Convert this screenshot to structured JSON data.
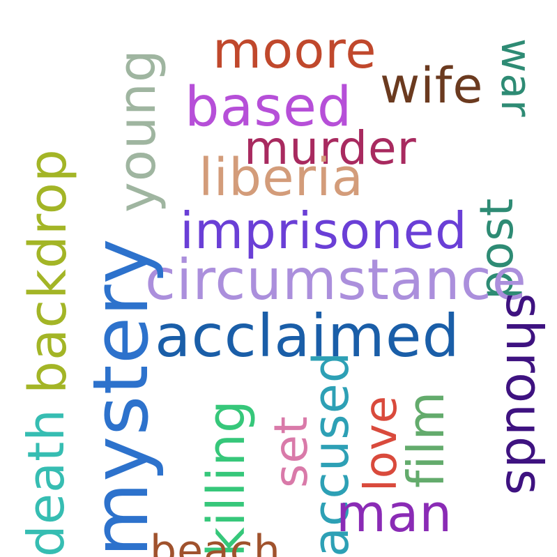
{
  "words": [
    {
      "text": "moore",
      "color": "#c0482c"
    },
    {
      "text": "wife",
      "color": "#6b3a1f"
    },
    {
      "text": "war",
      "color": "#2e8b74"
    },
    {
      "text": "based",
      "color": "#b64fd8"
    },
    {
      "text": "young",
      "color": "#9fb5a0"
    },
    {
      "text": "murder",
      "color": "#a82a5f"
    },
    {
      "text": "backdrop",
      "color": "#a3b526"
    },
    {
      "text": "liberia",
      "color": "#d39c7a"
    },
    {
      "text": "post",
      "color": "#2e8b74"
    },
    {
      "text": "imprisoned",
      "color": "#6a3fd6"
    },
    {
      "text": "circumstance",
      "color": "#ab8fdc"
    },
    {
      "text": "mystery",
      "color": "#2d72cc"
    },
    {
      "text": "acclaimed",
      "color": "#1a5ea8"
    },
    {
      "text": "shrouds",
      "color": "#3e1280"
    },
    {
      "text": "killing",
      "color": "#36c77a"
    },
    {
      "text": "accused",
      "color": "#2da0b5"
    },
    {
      "text": "set",
      "color": "#d97aa9"
    },
    {
      "text": "love",
      "color": "#d94a3c"
    },
    {
      "text": "film",
      "color": "#63ab6c"
    },
    {
      "text": "death",
      "color": "#36bdb2"
    },
    {
      "text": "man",
      "color": "#8a2bb5"
    },
    {
      "text": "beach",
      "color": "#a0522d"
    }
  ]
}
